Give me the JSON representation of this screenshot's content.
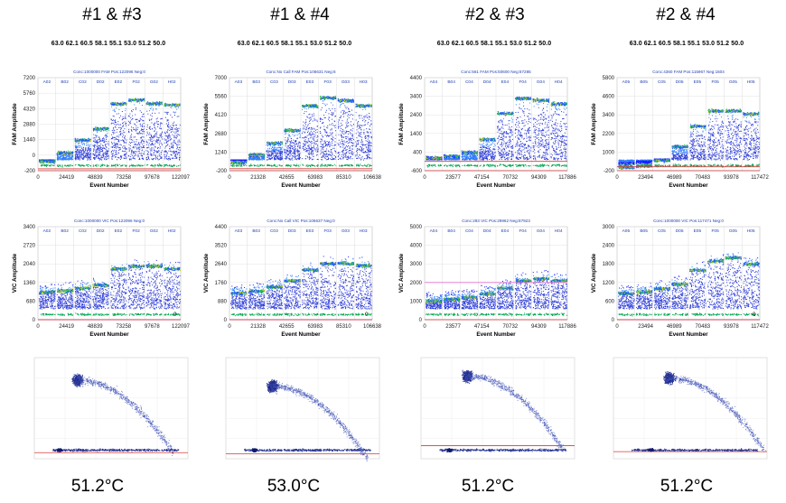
{
  "columns": [
    {
      "title": "#1 & #3",
      "temps": "63.0 62.1 60.5 58.1 55.1 53.0 51.2 50.0",
      "footer": "51.2°C"
    },
    {
      "title": "#1 & #4",
      "temps": "63.0 62.1 60.5 58.1 55.1 53.0 51.2 50.0",
      "footer": "53.0°C"
    },
    {
      "title": "#2 & #3",
      "temps": "63.0 62.1 60.5 58.1 55.1 53.0 51.2 50.0",
      "footer": "51.2°C"
    },
    {
      "title": "#2 & #4",
      "temps": "63.0 62.1 60.5 58.1 55.1 53.0 51.2 50.0",
      "footer": "51.2°C"
    }
  ],
  "colors": {
    "fam_threshold": "#d23c3c",
    "vic_threshold": "#e06fd0",
    "scatter_threshold": "#d23c3c",
    "axis_line": "#c83232",
    "panel_bg": "#ffffff",
    "caption": "#1f3fb4"
  },
  "chart_data": [
    {
      "type": "scatter",
      "channel": "FAM",
      "caption": "Conc:1000000 FAM Pos:122096 Neg:0",
      "wells": [
        "A02",
        "B02",
        "C02",
        "D02",
        "E02",
        "F02",
        "G02",
        "H02"
      ],
      "ylabel": "FAM Amplitude",
      "xlabel": "Event Number",
      "yticks": [
        "7200",
        "5760",
        "4320",
        "2880",
        "1440",
        "0",
        "-200"
      ],
      "xticks": [
        "0",
        "24419",
        "48839",
        "73258",
        "97678",
        "122097"
      ],
      "ylim": [
        -200,
        7200
      ],
      "xlim": [
        0,
        122097
      ],
      "well_levels": [
        700,
        1400,
        2400,
        3300,
        5300,
        5600,
        5300,
        5200
      ],
      "threshold": -50,
      "corner_label": ""
    },
    {
      "type": "scatter",
      "channel": "FAM",
      "caption": "Conc:No Call FAM Pos:106631 Neg:6",
      "wells": [
        "A03",
        "B03",
        "C03",
        "D03",
        "E03",
        "F03",
        "G03",
        "H03"
      ],
      "ylabel": "FAM Amplitude",
      "xlabel": "Event Number",
      "yticks": [
        "7000",
        "5560",
        "4120",
        "2680",
        "1240",
        "-200"
      ],
      "xticks": [
        "0",
        "21328",
        "42655",
        "63983",
        "85310",
        "106638"
      ],
      "ylim": [
        -200,
        7000
      ],
      "xlim": [
        0,
        106638
      ],
      "well_levels": [
        600,
        1200,
        2100,
        3100,
        5000,
        5600,
        5400,
        5000
      ],
      "threshold": -50,
      "corner_label": ""
    },
    {
      "type": "scatter",
      "channel": "FAM",
      "caption": "Conc:561 FAM Pos:50600 Neg:67285",
      "wells": [
        "A04",
        "B04",
        "C04",
        "D04",
        "E04",
        "F04",
        "G04",
        "H04"
      ],
      "ylabel": "FAM Amplitude",
      "xlabel": "Event Number",
      "yticks": [
        "4400",
        "3400",
        "2400",
        "1400",
        "400",
        "-600"
      ],
      "xticks": [
        "0",
        "23577",
        "47154",
        "70732",
        "94309",
        "117886"
      ],
      "ylim": [
        -600,
        4400
      ],
      "xlim": [
        0,
        117886
      ],
      "well_levels": [
        200,
        300,
        500,
        1200,
        2600,
        3400,
        3300,
        3100
      ],
      "threshold": -100,
      "corner_label": ""
    },
    {
      "type": "scatter",
      "channel": "FAM",
      "caption": "Conc:4360 FAM Pos:115967 Neg:1504",
      "wells": [
        "A05",
        "B05",
        "C05",
        "D05",
        "E05",
        "F05",
        "G05",
        "H05"
      ],
      "ylabel": "FAM Amplitude",
      "xlabel": "Event Number",
      "yticks": [
        "5800",
        "4600",
        "3400",
        "2200",
        "1000",
        "-200"
      ],
      "xticks": [
        "0",
        "23494",
        "46989",
        "70483",
        "93978",
        "117472"
      ],
      "ylim": [
        -200,
        5800
      ],
      "xlim": [
        0,
        117472
      ],
      "well_levels": [
        150,
        250,
        600,
        1500,
        2800,
        3800,
        3800,
        3600
      ],
      "threshold": 50,
      "corner_label": ""
    },
    {
      "type": "scatter",
      "channel": "VIC",
      "caption": "Conc:1000000 VIC Pos:122096 Neg:0",
      "wells": [
        "A02",
        "B02",
        "C02",
        "D02",
        "E02",
        "F02",
        "G02",
        "H02"
      ],
      "ylabel": "VIC Amplitude",
      "xlabel": "Event Number",
      "yticks": [
        "3400",
        "2720",
        "2040",
        "1360",
        "680",
        "0"
      ],
      "xticks": [
        "0",
        "24419",
        "48839",
        "73258",
        "97678",
        "122097"
      ],
      "ylim": [
        0,
        3400
      ],
      "xlim": [
        0,
        122097
      ],
      "well_levels": [
        1350,
        1400,
        1500,
        1600,
        2200,
        2300,
        2300,
        2200
      ],
      "threshold": 0,
      "corner_label": "0"
    },
    {
      "type": "scatter",
      "channel": "VIC",
      "caption": "Conc:No Call VIC Pos:106637 Neg:0",
      "wells": [
        "A03",
        "B03",
        "C03",
        "D03",
        "E03",
        "F03",
        "G03",
        "H03"
      ],
      "ylabel": "VIC Amplitude",
      "xlabel": "Event Number",
      "yticks": [
        "4400",
        "3520",
        "2640",
        "1760",
        "880",
        "0"
      ],
      "xticks": [
        "0",
        "21328",
        "42655",
        "63983",
        "85310",
        "106638"
      ],
      "ylim": [
        0,
        4400
      ],
      "xlim": [
        0,
        106638
      ],
      "well_levels": [
        1700,
        1800,
        2000,
        2300,
        2800,
        3100,
        3100,
        3000
      ],
      "threshold": 0,
      "corner_label": "0"
    },
    {
      "type": "scatter",
      "channel": "VIC",
      "caption": "Conc:293 VIC Pos:29962 Neg:87923",
      "wells": [
        "A04",
        "B04",
        "C04",
        "D04",
        "E04",
        "F04",
        "G04",
        "H04"
      ],
      "ylabel": "VIC Amplitude",
      "xlabel": "Event Number",
      "yticks": [
        "5000",
        "4000",
        "3000",
        "2000",
        "1000",
        "0"
      ],
      "xticks": [
        "0",
        "23577",
        "47154",
        "70732",
        "94309",
        "117886"
      ],
      "ylim": [
        0,
        5000
      ],
      "xlim": [
        0,
        117886
      ],
      "well_levels": [
        1500,
        1600,
        1700,
        1900,
        2200,
        2600,
        2700,
        2600
      ],
      "threshold": 2000,
      "corner_label": ""
    },
    {
      "type": "scatter",
      "channel": "VIC",
      "caption": "Conc:1000000 VIC Pos:117471 Neg:0",
      "wells": [
        "A05",
        "B05",
        "C05",
        "D05",
        "E05",
        "F05",
        "G05",
        "H05"
      ],
      "ylabel": "VIC Amplitude",
      "xlabel": "Event Number",
      "yticks": [
        "3000",
        "2400",
        "1800",
        "1200",
        "600",
        "0"
      ],
      "xticks": [
        "0",
        "23494",
        "46989",
        "70483",
        "93978",
        "117472"
      ],
      "ylim": [
        0,
        3000
      ],
      "xlim": [
        0,
        117472
      ],
      "well_levels": [
        1150,
        1200,
        1300,
        1450,
        1900,
        2200,
        2300,
        2100
      ],
      "threshold": 0,
      "corner_label": "0"
    },
    {
      "type": "scatter",
      "channel": "2D",
      "cluster_fam": 0.78,
      "cluster_vic": 0.28,
      "arc": true,
      "threshold": 0.06
    },
    {
      "type": "scatter",
      "channel": "2D",
      "cluster_fam": 0.72,
      "cluster_vic": 0.3,
      "arc": true,
      "threshold": 0.05
    },
    {
      "type": "scatter",
      "channel": "2D",
      "cluster_fam": 0.82,
      "cluster_vic": 0.3,
      "arc": true,
      "threshold": 0.13
    },
    {
      "type": "scatter",
      "channel": "2D",
      "cluster_fam": 0.8,
      "cluster_vic": 0.36,
      "arc": true,
      "threshold": 0.07
    }
  ]
}
